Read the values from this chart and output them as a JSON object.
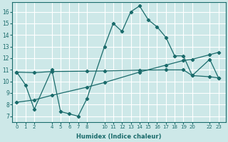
{
  "bg_color": "#cde8e8",
  "grid_color": "#ffffff",
  "line_color": "#1a6b6b",
  "xlabel": "Humidex (Indice chaleur)",
  "xticks": [
    0,
    1,
    2,
    4,
    5,
    6,
    7,
    8,
    10,
    11,
    12,
    13,
    14,
    15,
    16,
    17,
    18,
    19,
    20,
    22,
    23
  ],
  "yticks": [
    7,
    8,
    9,
    10,
    11,
    12,
    13,
    14,
    15,
    16
  ],
  "xlim": [
    -0.5,
    23.8
  ],
  "ylim": [
    6.5,
    16.8
  ],
  "line1_x": [
    0,
    1,
    2,
    4,
    5,
    6,
    7,
    8,
    10,
    11,
    12,
    13,
    14,
    15,
    16,
    17,
    18,
    19,
    20,
    22,
    23
  ],
  "line1_y": [
    10.8,
    9.7,
    7.6,
    11.0,
    7.4,
    7.2,
    7.0,
    8.5,
    13.0,
    15.0,
    14.3,
    16.0,
    16.5,
    15.3,
    14.7,
    13.8,
    12.2,
    12.2,
    10.5,
    11.9,
    10.3
  ],
  "line2_x": [
    0,
    2,
    4,
    8,
    10,
    14,
    17,
    19,
    20,
    22,
    23
  ],
  "line2_y": [
    8.2,
    8.4,
    8.8,
    9.5,
    9.9,
    10.8,
    11.4,
    11.8,
    11.9,
    12.3,
    12.5
  ],
  "line3_x": [
    0,
    2,
    4,
    8,
    10,
    14,
    17,
    19,
    20,
    22,
    23
  ],
  "line3_y": [
    10.8,
    10.75,
    10.85,
    10.88,
    10.9,
    10.97,
    10.99,
    10.99,
    10.5,
    10.4,
    10.3
  ]
}
